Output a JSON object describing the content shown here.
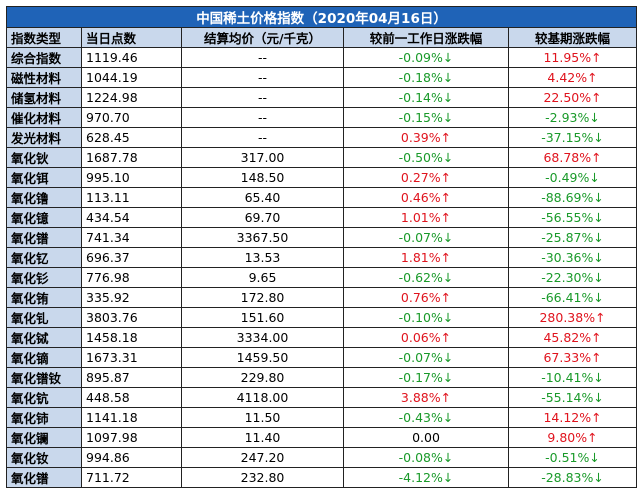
{
  "title": "中国稀土价格指数（2020年04月16日）",
  "headers": [
    "指数类型",
    "当日点数",
    "结算均价（元/千克）",
    "较前一工作日涨跌幅",
    "较基期涨跌幅"
  ],
  "colors": {
    "title_bg": "#1f63b7",
    "header_bg": "#c9d8ec",
    "up": "#e0141e",
    "down": "#1a9a2a"
  },
  "rows": [
    {
      "name": "综合指数",
      "points": "1119.46",
      "price": "--",
      "day": "-0.09%↓",
      "day_dir": "down",
      "base": "11.95%↑",
      "base_dir": "up"
    },
    {
      "name": "磁性材料",
      "points": "1044.19",
      "price": "--",
      "day": "-0.18%↓",
      "day_dir": "down",
      "base": "4.42%↑",
      "base_dir": "up"
    },
    {
      "name": "储氢材料",
      "points": "1224.98",
      "price": "--",
      "day": "-0.14%↓",
      "day_dir": "down",
      "base": "22.50%↑",
      "base_dir": "up"
    },
    {
      "name": "催化材料",
      "points": "970.70",
      "price": "--",
      "day": "-0.15%↓",
      "day_dir": "down",
      "base": "-2.93%↓",
      "base_dir": "down"
    },
    {
      "name": "发光材料",
      "points": "628.45",
      "price": "--",
      "day": "0.39%↑",
      "day_dir": "up",
      "base": "-37.15%↓",
      "base_dir": "down"
    },
    {
      "name": "氧化钬",
      "points": "1687.78",
      "price": "317.00",
      "day": "-0.50%↓",
      "day_dir": "down",
      "base": "68.78%↑",
      "base_dir": "up"
    },
    {
      "name": "氧化铒",
      "points": "995.10",
      "price": "148.50",
      "day": "0.27%↑",
      "day_dir": "up",
      "base": "-0.49%↓",
      "base_dir": "down"
    },
    {
      "name": "氧化镥",
      "points": "113.11",
      "price": "65.40",
      "day": "0.46%↑",
      "day_dir": "up",
      "base": "-88.69%↓",
      "base_dir": "down"
    },
    {
      "name": "氧化镱",
      "points": "434.54",
      "price": "69.70",
      "day": "1.01%↑",
      "day_dir": "up",
      "base": "-56.55%↓",
      "base_dir": "down"
    },
    {
      "name": "氧化镨",
      "points": "741.34",
      "price": "3367.50",
      "day": "-0.07%↓",
      "day_dir": "down",
      "base": "-25.87%↓",
      "base_dir": "down"
    },
    {
      "name": "氧化钇",
      "points": "696.37",
      "price": "13.53",
      "day": "1.81%↑",
      "day_dir": "up",
      "base": "-30.36%↓",
      "base_dir": "down"
    },
    {
      "name": "氧化钐",
      "points": "776.98",
      "price": "9.65",
      "day": "-0.62%↓",
      "day_dir": "down",
      "base": "-22.30%↓",
      "base_dir": "down"
    },
    {
      "name": "氧化铕",
      "points": "335.92",
      "price": "172.80",
      "day": "0.76%↑",
      "day_dir": "up",
      "base": "-66.41%↓",
      "base_dir": "down"
    },
    {
      "name": "氧化钆",
      "points": "3803.76",
      "price": "151.60",
      "day": "-0.10%↓",
      "day_dir": "down",
      "base": "280.38%↑",
      "base_dir": "up"
    },
    {
      "name": "氧化铽",
      "points": "1458.18",
      "price": "3334.00",
      "day": "0.06%↑",
      "day_dir": "up",
      "base": "45.82%↑",
      "base_dir": "up"
    },
    {
      "name": "氧化镝",
      "points": "1673.31",
      "price": "1459.50",
      "day": "-0.07%↓",
      "day_dir": "down",
      "base": "67.33%↑",
      "base_dir": "up"
    },
    {
      "name": "氧化镨钕",
      "points": "895.87",
      "price": "229.80",
      "day": "-0.17%↓",
      "day_dir": "down",
      "base": "-10.41%↓",
      "base_dir": "down"
    },
    {
      "name": "氧化钪",
      "points": "448.58",
      "price": "4118.00",
      "day": "3.88%↑",
      "day_dir": "up",
      "base": "-55.14%↓",
      "base_dir": "down"
    },
    {
      "name": "氧化铈",
      "points": "1141.18",
      "price": "11.50",
      "day": "-0.43%↓",
      "day_dir": "down",
      "base": "14.12%↑",
      "base_dir": "up"
    },
    {
      "name": "氧化镧",
      "points": "1097.98",
      "price": "11.40",
      "day": "0.00",
      "day_dir": "flat",
      "base": "9.80%↑",
      "base_dir": "up"
    },
    {
      "name": "氧化钕",
      "points": "994.86",
      "price": "247.20",
      "day": "-0.08%↓",
      "day_dir": "down",
      "base": "-0.51%↓",
      "base_dir": "down"
    },
    {
      "name": "氧化镨",
      "points": "711.72",
      "price": "232.80",
      "day": "-4.12%↓",
      "day_dir": "down",
      "base": "-28.83%↓",
      "base_dir": "down"
    }
  ]
}
